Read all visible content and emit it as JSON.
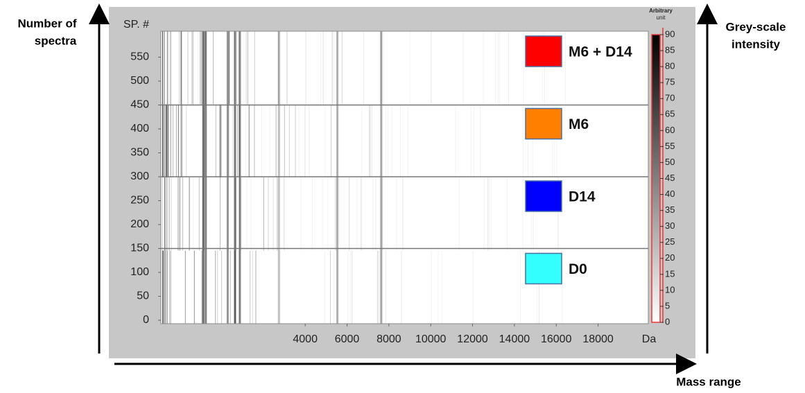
{
  "chart_data": {
    "type": "gel",
    "ylabel": "SP. #",
    "xlabel": "Da",
    "xlim": [
      -2900,
      20400
    ],
    "xticks": [
      4000,
      6000,
      8000,
      10000,
      12000,
      14000,
      16000,
      18000
    ],
    "ylim": [
      0,
      600
    ],
    "yticks": [
      0,
      50,
      100,
      150,
      200,
      250,
      300,
      350,
      400,
      450,
      500,
      550
    ],
    "dividers": [
      150,
      300,
      450
    ],
    "groups": [
      {
        "name": "M6 + D14",
        "color": "#ff0000"
      },
      {
        "name": "M6",
        "color": "#ff8000"
      },
      {
        "name": "D14",
        "color": "#0000ff"
      },
      {
        "name": "D0",
        "color": "#33ffff"
      }
    ],
    "colorbar": {
      "title": [
        "Arbitrary",
        "unit"
      ],
      "lim": [
        0,
        90
      ],
      "ticks": [
        0,
        5,
        10,
        15,
        20,
        25,
        30,
        35,
        40,
        45,
        50,
        55,
        60,
        65,
        70,
        75,
        80,
        85,
        90
      ]
    },
    "outer_labels": {
      "left": [
        "Number of",
        "spectra"
      ],
      "right": [
        "Grey-scale",
        "intensity"
      ],
      "bottom": "Mass range"
    }
  }
}
